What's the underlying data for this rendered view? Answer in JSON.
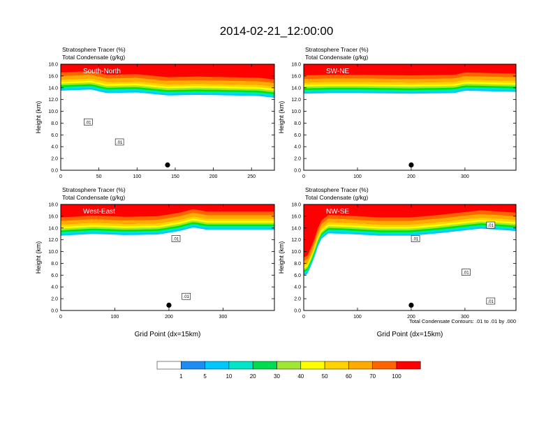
{
  "title": "2014-02-21_12:00:00",
  "colors": {
    "scale": [
      "#ffffff",
      "#1e8cf0",
      "#00c8ff",
      "#00e6c8",
      "#00dc50",
      "#00e600",
      "#a0e632",
      "#ffff00",
      "#ffd200",
      "#ffaa00",
      "#ff6400",
      "#ff2800",
      "#ff0000"
    ],
    "contour": "#000000"
  },
  "colorbar": {
    "labels": [
      "1",
      "5",
      "10",
      "20",
      "30",
      "40",
      "50",
      "60",
      "70",
      "100"
    ]
  },
  "footnote": "Total Condensate Contours: .01 to .01 by .000",
  "chart_data": [
    {
      "type": "heatmap",
      "panel_label": "South-North",
      "header_lines": [
        "Stratosphere Tracer   (%)",
        "Total Condensate   (g/kg)"
      ],
      "ylabel": "Height (km)",
      "xlabel": "",
      "ylim": [
        0,
        18
      ],
      "xlim": [
        0,
        280
      ],
      "yticks": [
        "0.0",
        "2.0",
        "4.0",
        "6.0",
        "8.0",
        "10.0",
        "12.0",
        "14.0",
        "16.0",
        "18.0"
      ],
      "xticks": [
        {
          "v": 0,
          "l": "0"
        },
        {
          "v": 50,
          "l": "50"
        },
        {
          "v": 100,
          "l": "100"
        },
        {
          "v": 150,
          "l": "150"
        },
        {
          "v": 200,
          "l": "200"
        },
        {
          "v": 250,
          "l": "250"
        }
      ],
      "tracer_base_km": [
        [
          0,
          15.4
        ],
        [
          20,
          15.5
        ],
        [
          40,
          15.6
        ],
        [
          60,
          15.0
        ],
        [
          100,
          15.1
        ],
        [
          140,
          14.6
        ],
        [
          180,
          14.7
        ],
        [
          220,
          14.6
        ],
        [
          260,
          14.5
        ],
        [
          280,
          14.2
        ]
      ],
      "marker_x": 140,
      "contour_labels": [
        {
          "x": 36,
          "y": 8.2,
          "text": ".01"
        },
        {
          "x": 77,
          "y": 4.8,
          "text": ".01"
        }
      ]
    },
    {
      "type": "heatmap",
      "panel_label": "SW-NE",
      "header_lines": [
        "Stratosphere Tracer   (%)",
        "Total Condensate   (g/kg)"
      ],
      "ylabel": "Height (km)",
      "xlabel": "",
      "ylim": [
        0,
        18
      ],
      "xlim": [
        0,
        395
      ],
      "yticks": [
        "0.0",
        "2.0",
        "4.0",
        "6.0",
        "8.0",
        "10.0",
        "12.0",
        "14.0",
        "16.0",
        "18.0"
      ],
      "xticks": [
        {
          "v": 0,
          "l": "0"
        },
        {
          "v": 100,
          "l": "100"
        },
        {
          "v": 200,
          "l": "200"
        },
        {
          "v": 300,
          "l": "300"
        }
      ],
      "tracer_base_km": [
        [
          0,
          14.9
        ],
        [
          50,
          15.0
        ],
        [
          100,
          15.0
        ],
        [
          200,
          14.9
        ],
        [
          280,
          15.0
        ],
        [
          300,
          15.4
        ],
        [
          395,
          15.2
        ]
      ],
      "marker_x": 200,
      "contour_labels": []
    },
    {
      "type": "heatmap",
      "panel_label": "West-East",
      "header_lines": [
        "Stratosphere Tracer   (%)",
        "Total Condensate   (g/kg)"
      ],
      "ylabel": "Height (km)",
      "xlabel": "Grid Point (dx=15km)",
      "ylim": [
        0,
        18
      ],
      "xlim": [
        0,
        395
      ],
      "yticks": [
        "0.0",
        "2.0",
        "4.0",
        "6.0",
        "8.0",
        "10.0",
        "12.0",
        "14.0",
        "16.0",
        "18.0"
      ],
      "xticks": [
        {
          "v": 0,
          "l": "0"
        },
        {
          "v": 100,
          "l": "100"
        },
        {
          "v": 200,
          "l": "200"
        },
        {
          "v": 300,
          "l": "300"
        }
      ],
      "tracer_base_km": [
        [
          0,
          14.6
        ],
        [
          60,
          14.9
        ],
        [
          120,
          14.7
        ],
        [
          180,
          14.8
        ],
        [
          220,
          15.4
        ],
        [
          245,
          16.0
        ],
        [
          270,
          15.6
        ],
        [
          320,
          15.6
        ],
        [
          395,
          15.6
        ]
      ],
      "marker_x": 200,
      "contour_labels": [
        {
          "x": 213,
          "y": 12.2,
          "text": ".01"
        },
        {
          "x": 232,
          "y": 2.4,
          "text": ".01"
        }
      ]
    },
    {
      "type": "heatmap",
      "panel_label": "NW-SE",
      "header_lines": [
        "Stratosphere Tracer   (%)",
        "Total Condensate   (g/kg)"
      ],
      "ylabel": "Height (km)",
      "xlabel": "Grid Point (dx=15km)",
      "ylim": [
        0,
        18
      ],
      "xlim": [
        0,
        395
      ],
      "yticks": [
        "0.0",
        "2.0",
        "4.0",
        "6.0",
        "8.0",
        "10.0",
        "12.0",
        "14.0",
        "16.0",
        "18.0"
      ],
      "xticks": [
        {
          "v": 0,
          "l": "0"
        },
        {
          "v": 100,
          "l": "100"
        },
        {
          "v": 200,
          "l": "200"
        },
        {
          "v": 300,
          "l": "300"
        }
      ],
      "tracer_base_km": [
        [
          0,
          7.8
        ],
        [
          8,
          8.2
        ],
        [
          20,
          11.0
        ],
        [
          30,
          13.8
        ],
        [
          45,
          15.0
        ],
        [
          80,
          14.9
        ],
        [
          140,
          14.6
        ],
        [
          200,
          14.6
        ],
        [
          250,
          15.0
        ],
        [
          330,
          15.8
        ],
        [
          395,
          15.4
        ]
      ],
      "marker_x": 200,
      "contour_labels": [
        {
          "x": 208,
          "y": 12.2,
          "text": ".01"
        },
        {
          "x": 302,
          "y": 6.5,
          "text": ".01"
        },
        {
          "x": 348,
          "y": 14.5,
          "text": ".01"
        },
        {
          "x": 348,
          "y": 1.6,
          "text": ".01"
        }
      ]
    }
  ]
}
